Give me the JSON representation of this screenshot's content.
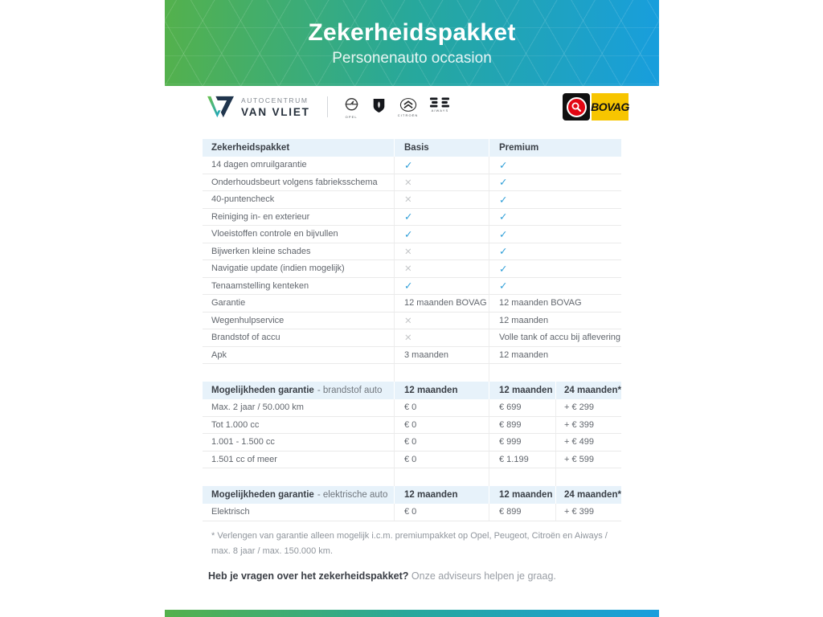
{
  "banner": {
    "title": "Zekerheidspakket",
    "subtitle": "Personenauto occasion"
  },
  "logos": {
    "dealer": {
      "line1": "AUTOCENTRUM",
      "line2": "VAN VLIET"
    },
    "brands": [
      {
        "name": "Opel",
        "caption": "OPEL"
      },
      {
        "name": "Peugeot",
        "caption": ""
      },
      {
        "name": "Citroën",
        "caption": "CITROËN"
      },
      {
        "name": "Aiways",
        "caption": "AIWAYS"
      }
    ],
    "bovag": {
      "label": "BOVAG"
    }
  },
  "marks": {
    "check": "✓",
    "cross": "✕"
  },
  "comparison_table": {
    "headers": [
      "Zekerheidspakket",
      "Basis",
      "Premium"
    ],
    "rows": [
      {
        "label": "14 dagen omruilgarantie",
        "basis": {
          "mark": "check"
        },
        "premium": {
          "mark": "check"
        }
      },
      {
        "label": "Onderhoudsbeurt volgens fabrieksschema",
        "basis": {
          "mark": "cross"
        },
        "premium": {
          "mark": "check"
        }
      },
      {
        "label": "40-puntencheck",
        "basis": {
          "mark": "cross"
        },
        "premium": {
          "mark": "check"
        }
      },
      {
        "label": "Reiniging in- en exterieur",
        "basis": {
          "mark": "check"
        },
        "premium": {
          "mark": "check"
        }
      },
      {
        "label": "Vloeistoffen controle en bijvullen",
        "basis": {
          "mark": "check"
        },
        "premium": {
          "mark": "check"
        }
      },
      {
        "label": "Bijwerken kleine schades",
        "basis": {
          "mark": "cross"
        },
        "premium": {
          "mark": "check"
        }
      },
      {
        "label": "Navigatie update (indien mogelijk)",
        "basis": {
          "mark": "cross"
        },
        "premium": {
          "mark": "check"
        }
      },
      {
        "label": "Tenaamstelling kenteken",
        "basis": {
          "mark": "check"
        },
        "premium": {
          "mark": "check"
        }
      },
      {
        "label": "Garantie",
        "basis": {
          "text": "12 maanden BOVAG"
        },
        "premium": {
          "text": "12 maanden BOVAG"
        }
      },
      {
        "label": "Wegenhulpservice",
        "basis": {
          "mark": "cross"
        },
        "premium": {
          "text": "12 maanden"
        }
      },
      {
        "label": "Brandstof of accu",
        "basis": {
          "mark": "cross"
        },
        "premium": {
          "text": "Volle tank of accu bij aflevering"
        }
      },
      {
        "label": "Apk",
        "basis": {
          "text": "3 maanden"
        },
        "premium": {
          "text": "12 maanden"
        }
      }
    ]
  },
  "fuel_table": {
    "header": {
      "bold": "Mogelijkheden garantie",
      "rest": "- brandstof auto",
      "cols": [
        "12 maanden",
        "12 maanden",
        "24 maanden*"
      ]
    },
    "rows": [
      {
        "label": "Max. 2 jaar / 50.000 km",
        "values": [
          "€ 0",
          "€ 699",
          "+ € 299"
        ]
      },
      {
        "label": "Tot 1.000 cc",
        "values": [
          "€ 0",
          "€ 899",
          "+ € 399"
        ]
      },
      {
        "label": "1.001 - 1.500 cc",
        "values": [
          "€ 0",
          "€ 999",
          "+ € 499"
        ]
      },
      {
        "label": "1.501 cc of meer",
        "values": [
          "€ 0",
          "€ 1.199",
          "+ € 599"
        ]
      }
    ]
  },
  "electric_table": {
    "header": {
      "bold": "Mogelijkheden garantie",
      "rest": "- elektrische auto",
      "cols": [
        "12 maanden",
        "12 maanden",
        "24 maanden*"
      ]
    },
    "rows": [
      {
        "label": "Elektrisch",
        "values": [
          "€ 0",
          "€ 899",
          "+ € 399"
        ]
      }
    ]
  },
  "footnote": "* Verlengen van garantie alleen mogelijk i.c.m. premiumpakket op Opel, Peugeot, Citroën en Aiways / max. 8 jaar / max. 150.000 km.",
  "question": {
    "bold": "Heb je vragen over het zekerheidspakket?",
    "rest": "Onze adviseurs helpen je graag."
  },
  "colors": {
    "gradient_green": "#54b14c",
    "gradient_teal": "#27a89c",
    "gradient_blue": "#189edd",
    "check": "#2d9ed8",
    "cross": "#c6c8ca",
    "header_bg": "#e7f2fa",
    "bovag_yellow": "#f7c500",
    "bovag_red": "#e30613"
  }
}
